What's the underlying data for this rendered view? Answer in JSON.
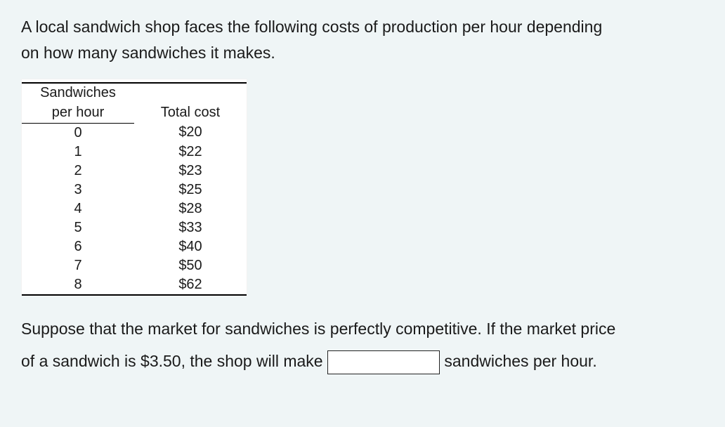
{
  "intro_line1": "A local sandwich shop faces the following costs of production per hour depending",
  "intro_line2": "on how many sandwiches it makes.",
  "table": {
    "col1_header_line1": "Sandwiches",
    "col1_header_line2": "per hour",
    "col2_header": "Total cost",
    "rows": [
      {
        "qty": "0",
        "cost": "$20"
      },
      {
        "qty": "1",
        "cost": "$22"
      },
      {
        "qty": "2",
        "cost": "$23"
      },
      {
        "qty": "3",
        "cost": "$25"
      },
      {
        "qty": "4",
        "cost": "$28"
      },
      {
        "qty": "5",
        "cost": "$33"
      },
      {
        "qty": "6",
        "cost": "$40"
      },
      {
        "qty": "7",
        "cost": "$50"
      },
      {
        "qty": "8",
        "cost": "$62"
      }
    ]
  },
  "prompt_line1": "Suppose that the market for sandwiches is perfectly competitive. If the market price",
  "prompt_before_box": "of a sandwich is $3.50, the shop will make ",
  "prompt_after_box": " sandwiches per hour.",
  "answer_value": ""
}
